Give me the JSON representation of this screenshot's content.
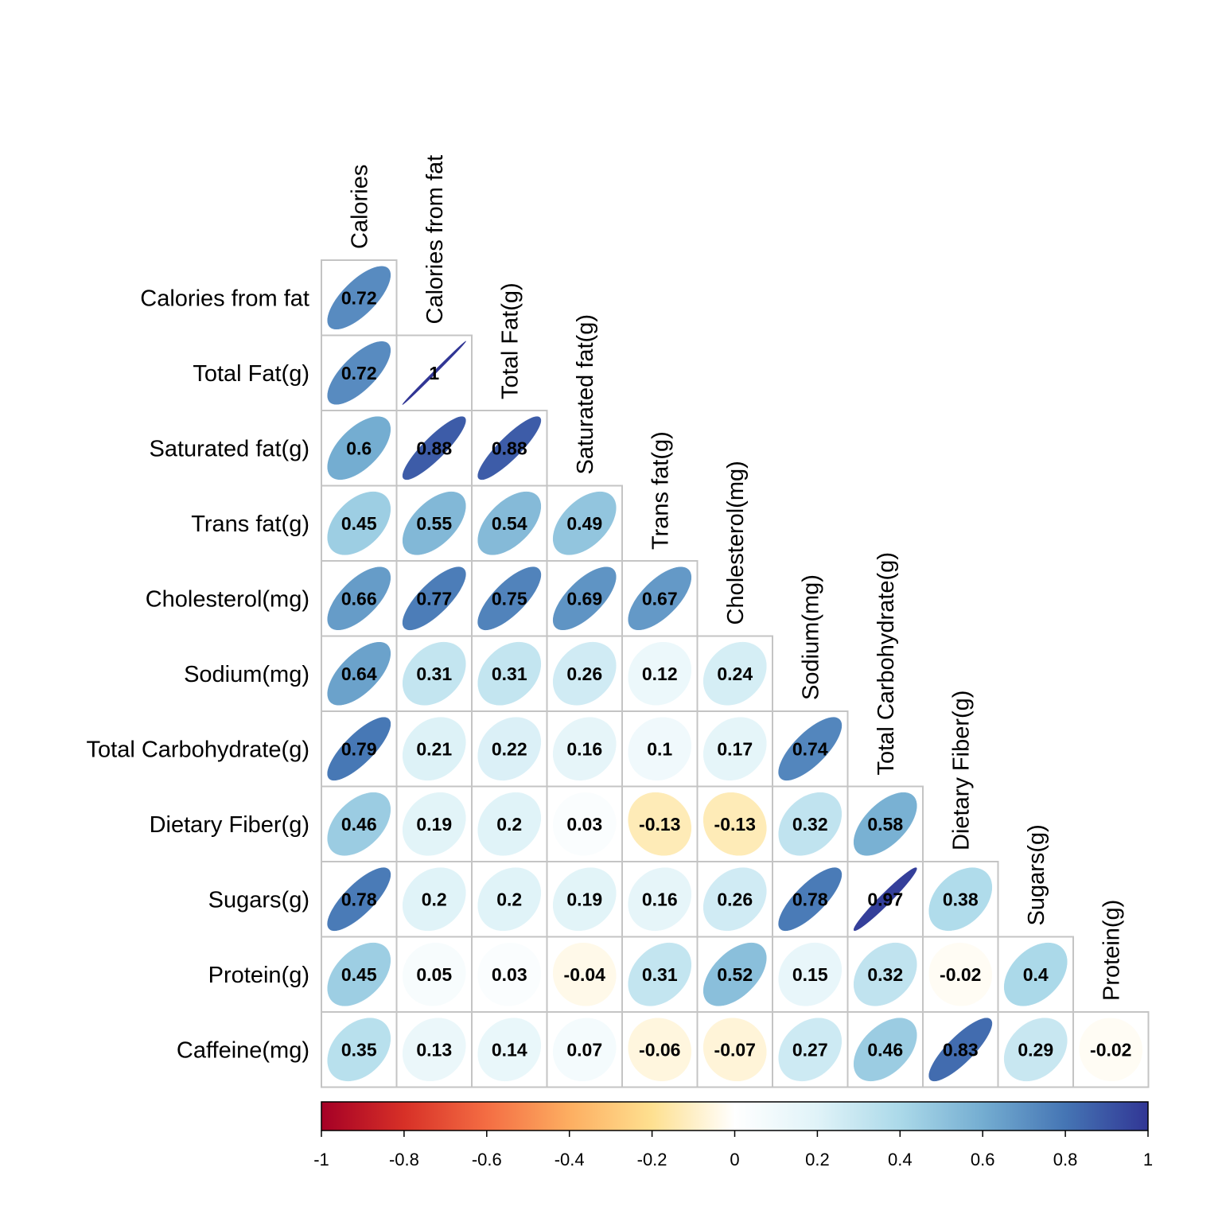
{
  "chart_data": {
    "type": "heatmap",
    "subtype": "correlation-ellipse-lower-triangle",
    "row_labels": [
      "Calories from fat",
      "Total Fat(g)",
      "Saturated fat(g)",
      "Trans fat(g)",
      "Cholesterol(mg)",
      "Sodium(mg)",
      "Total Carbohydrate(g)",
      "Dietary Fiber(g)",
      "Sugars(g)",
      "Protein(g)",
      "Caffeine(mg)"
    ],
    "col_labels": [
      "Calories",
      "Calories from fat",
      "Total Fat(g)",
      "Saturated fat(g)",
      "Trans fat(g)",
      "Cholesterol(mg)",
      "Sodium(mg)",
      "Total Carbohydrate(g)",
      "Dietary Fiber(g)",
      "Sugars(g)",
      "Protein(g)"
    ],
    "values": [
      [
        0.72
      ],
      [
        0.72,
        1
      ],
      [
        0.6,
        0.88,
        0.88
      ],
      [
        0.45,
        0.55,
        0.54,
        0.49
      ],
      [
        0.66,
        0.77,
        0.75,
        0.69,
        0.67
      ],
      [
        0.64,
        0.31,
        0.31,
        0.26,
        0.12,
        0.24
      ],
      [
        0.79,
        0.21,
        0.22,
        0.16,
        0.1,
        0.17,
        0.74
      ],
      [
        0.46,
        0.19,
        0.2,
        0.03,
        -0.13,
        -0.13,
        0.32,
        0.58
      ],
      [
        0.78,
        0.2,
        0.2,
        0.19,
        0.16,
        0.26,
        0.78,
        0.97,
        0.38
      ],
      [
        0.45,
        0.05,
        0.03,
        -0.04,
        0.31,
        0.52,
        0.15,
        0.32,
        -0.02,
        0.4
      ],
      [
        0.35,
        0.13,
        0.14,
        0.07,
        -0.06,
        -0.07,
        0.27,
        0.46,
        0.83,
        0.29,
        -0.02
      ]
    ],
    "colorbar": {
      "range": [
        -1,
        1
      ],
      "ticks": [
        -1,
        -0.8,
        -0.6,
        -0.4,
        -0.2,
        0,
        0.2,
        0.4,
        0.6,
        0.8,
        1
      ],
      "tick_labels": [
        "-1",
        "-0.8",
        "-0.6",
        "-0.4",
        "-0.2",
        "0",
        "0.2",
        "0.4",
        "0.6",
        "0.8",
        "1"
      ],
      "colors": [
        "#B2182B",
        "#D6604D",
        "#F4A582",
        "#FDDBC7",
        "#FFFFFF",
        "#D1E5F0",
        "#92C5DE",
        "#4393C3",
        "#2166AC"
      ],
      "scale": [
        "#a50026",
        "#d73027",
        "#f46d43",
        "#fdae61",
        "#fee090",
        "#ffffff",
        "#e0f3f8",
        "#abd9e9",
        "#74add1",
        "#4575b4",
        "#313695"
      ]
    }
  }
}
